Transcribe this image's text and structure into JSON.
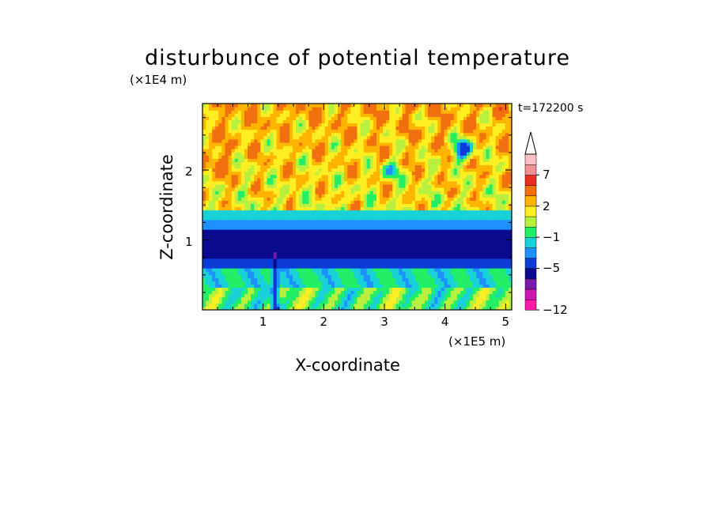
{
  "chart_data": {
    "type": "heatmap",
    "title": "disturbunce of potential temperature",
    "xlabel": "X-coordinate",
    "ylabel": "Z-coordinate",
    "x_multiplier": "(×1E5 m)",
    "y_multiplier": "(×1E4 m)",
    "time_label": "t=172200 s",
    "xlim": [
      0,
      5.1
    ],
    "ylim": [
      0,
      2.95
    ],
    "x_ticks": [
      1,
      2,
      3,
      4,
      5
    ],
    "x_tick_labels": [
      "1",
      "2",
      "3",
      "4",
      "5"
    ],
    "y_ticks": [
      1,
      2
    ],
    "y_tick_labels": [
      "1",
      "2"
    ],
    "colorbar": {
      "labels": [
        {
          "value": 7,
          "text": "7"
        },
        {
          "value": 2,
          "text": "2"
        },
        {
          "value": -1,
          "text": "−1"
        },
        {
          "value": -5,
          "text": "−5"
        },
        {
          "value": -12,
          "text": "−12"
        }
      ],
      "extend": "max",
      "bands": [
        {
          "range": [
            -12,
            -11
          ],
          "color": "#ff1aa8"
        },
        {
          "range": [
            -11,
            -9
          ],
          "color": "#cc1ab0"
        },
        {
          "range": [
            -9,
            -7
          ],
          "color": "#7a1aaa"
        },
        {
          "range": [
            -7,
            -5
          ],
          "color": "#0a0a8e"
        },
        {
          "range": [
            -5,
            -3
          ],
          "color": "#0d3bd6"
        },
        {
          "range": [
            -3,
            -2
          ],
          "color": "#1e90ff"
        },
        {
          "range": [
            -2,
            -1
          ],
          "color": "#18d2d8"
        },
        {
          "range": [
            -1,
            0
          ],
          "color": "#22ee66"
        },
        {
          "range": [
            0,
            1
          ],
          "color": "#b8f040"
        },
        {
          "range": [
            1,
            2
          ],
          "color": "#ffee22"
        },
        {
          "range": [
            2,
            3
          ],
          "color": "#ffb400"
        },
        {
          "range": [
            3,
            5
          ],
          "color": "#f07010"
        },
        {
          "range": [
            5,
            7
          ],
          "color": "#e83020"
        },
        {
          "range": [
            7,
            9
          ],
          "color": "#f09090"
        },
        {
          "range": [
            9,
            11
          ],
          "color": "#ffc0c8"
        },
        {
          "range": [
            11,
            13
          ],
          "color": "#ffffff"
        }
      ]
    },
    "field_description_bands": [
      {
        "z_range": [
          2.5,
          2.95
        ],
        "dominant": [
          2,
          3
        ]
      },
      {
        "z_range": [
          1.45,
          2.5
        ],
        "dominant": [
          1,
          3
        ]
      },
      {
        "z_range": [
          1.3,
          1.45
        ],
        "dominant": [
          -2,
          -1
        ]
      },
      {
        "z_range": [
          1.15,
          1.3
        ],
        "dominant": [
          -3,
          -2
        ]
      },
      {
        "z_range": [
          0.75,
          1.15
        ],
        "dominant": [
          -7,
          -5
        ]
      },
      {
        "z_range": [
          0.6,
          0.75
        ],
        "dominant": [
          -5,
          -3
        ]
      },
      {
        "z_range": [
          0.3,
          0.6
        ],
        "dominant": [
          -2,
          0
        ]
      },
      {
        "z_range": [
          0,
          0.3
        ],
        "dominant": [
          -1,
          1
        ]
      }
    ]
  }
}
